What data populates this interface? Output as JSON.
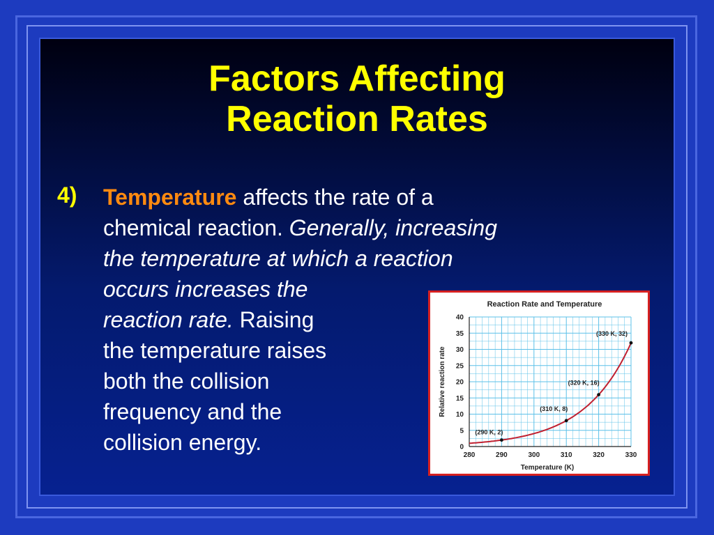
{
  "title": {
    "line1": "Factors Affecting",
    "line2": "Reaction Rates"
  },
  "bullet": {
    "number": "4)",
    "keyword": "Temperature",
    "text1": " affects the rate of a",
    "text2": "chemical reaction. ",
    "italic1": "Generally, increasing",
    "italic2": "the temperature at which a reaction",
    "italic3": "occurs increases the",
    "italic4": "reaction rate.",
    "text3": " Raising",
    "text4": "the temperature raises",
    "text5": "both the collision",
    "text6": "frequency and the",
    "text7": "collision energy."
  },
  "colors": {
    "title": "#ffff00",
    "keyword": "#ff8a10",
    "body_text": "#ffffff",
    "chart_border": "#d62020",
    "curve": "#c02030",
    "grid": "#5bc0e8"
  },
  "chart_data": {
    "type": "line",
    "title": "Reaction Rate and Temperature",
    "xlabel": "Temperature (K)",
    "ylabel": "Relative reaction rate",
    "xlim": [
      280,
      330
    ],
    "ylim": [
      0,
      40
    ],
    "x_ticks": [
      280,
      290,
      300,
      310,
      320,
      330
    ],
    "y_ticks": [
      0,
      5,
      10,
      15,
      20,
      25,
      30,
      35,
      40
    ],
    "grid": true,
    "series": [
      {
        "x": [
          280,
          290,
          300,
          310,
          320,
          330
        ],
        "values": [
          1,
          2,
          4,
          8,
          16,
          32
        ]
      }
    ],
    "points": [
      {
        "x": 290,
        "y": 2,
        "label": "(290 K, 2)"
      },
      {
        "x": 310,
        "y": 8,
        "label": "(310 K, 8)"
      },
      {
        "x": 320,
        "y": 16,
        "label": "(320 K, 16)"
      },
      {
        "x": 330,
        "y": 32,
        "label": "(330 K, 32)"
      }
    ]
  }
}
